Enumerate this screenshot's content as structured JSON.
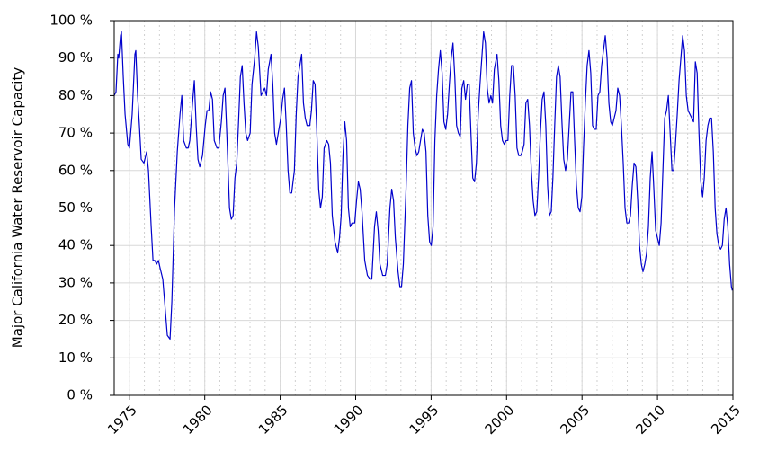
{
  "chart_data": {
    "type": "line",
    "ylabel": "Major California Water Reservoir Capacity",
    "color": "#0000cc",
    "xlim": [
      1974,
      2015
    ],
    "xticks": [
      1975,
      1980,
      1985,
      1990,
      1995,
      2000,
      2005,
      2010,
      2015
    ],
    "ylim": [
      0,
      100
    ],
    "yticks": [
      {
        "value": 0,
        "label": "0 %"
      },
      {
        "value": 10,
        "label": "10 %"
      },
      {
        "value": 20,
        "label": "20 %"
      },
      {
        "value": 30,
        "label": "30 %"
      },
      {
        "value": 40,
        "label": "40 %"
      },
      {
        "value": 50,
        "label": "50 %"
      },
      {
        "value": 60,
        "label": "60 %"
      },
      {
        "value": 70,
        "label": "70 %"
      },
      {
        "value": 80,
        "label": "80 %"
      },
      {
        "value": 90,
        "label": "90 %"
      },
      {
        "value": 100,
        "label": "100 %"
      }
    ],
    "grid": true,
    "x": [
      1974.0,
      1974.12,
      1974.24,
      1974.3,
      1974.42,
      1974.48,
      1974.6,
      1974.72,
      1974.9,
      1975.01,
      1975.19,
      1975.37,
      1975.43,
      1975.55,
      1975.67,
      1975.79,
      1975.97,
      1976.15,
      1976.27,
      1976.45,
      1976.57,
      1976.69,
      1976.81,
      1976.93,
      1977.04,
      1977.22,
      1977.34,
      1977.52,
      1977.7,
      1977.82,
      1978.0,
      1978.18,
      1978.36,
      1978.48,
      1978.6,
      1978.78,
      1978.9,
      1979.01,
      1979.19,
      1979.31,
      1979.43,
      1979.55,
      1979.67,
      1979.85,
      1980.03,
      1980.15,
      1980.27,
      1980.39,
      1980.51,
      1980.63,
      1980.81,
      1980.93,
      1981.1,
      1981.22,
      1981.34,
      1981.46,
      1981.64,
      1981.76,
      1981.88,
      1982.0,
      1982.12,
      1982.24,
      1982.36,
      1982.48,
      1982.6,
      1982.72,
      1982.84,
      1983.01,
      1983.13,
      1983.31,
      1983.43,
      1983.55,
      1983.73,
      1983.85,
      1983.97,
      1984.09,
      1984.21,
      1984.39,
      1984.51,
      1984.63,
      1984.75,
      1984.87,
      1985.04,
      1985.16,
      1985.28,
      1985.4,
      1985.52,
      1985.64,
      1985.76,
      1985.94,
      1986.06,
      1986.18,
      1986.3,
      1986.42,
      1986.54,
      1986.66,
      1986.78,
      1986.96,
      1987.07,
      1987.19,
      1987.31,
      1987.43,
      1987.55,
      1987.67,
      1987.79,
      1987.91,
      1988.09,
      1988.21,
      1988.33,
      1988.45,
      1988.63,
      1988.81,
      1988.93,
      1989.04,
      1989.16,
      1989.28,
      1989.4,
      1989.52,
      1989.64,
      1989.76,
      1989.94,
      1990.06,
      1990.18,
      1990.3,
      1990.42,
      1990.6,
      1990.78,
      1990.96,
      1991.07,
      1991.25,
      1991.37,
      1991.49,
      1991.61,
      1991.79,
      1991.97,
      1992.09,
      1992.27,
      1992.39,
      1992.51,
      1992.63,
      1992.81,
      1992.93,
      1993.04,
      1993.16,
      1993.34,
      1993.46,
      1993.58,
      1993.7,
      1993.82,
      1993.94,
      1994.06,
      1994.18,
      1994.3,
      1994.42,
      1994.54,
      1994.66,
      1994.78,
      1994.9,
      1995.01,
      1995.13,
      1995.25,
      1995.37,
      1995.49,
      1995.61,
      1995.73,
      1995.85,
      1995.97,
      1996.09,
      1996.21,
      1996.33,
      1996.45,
      1996.57,
      1996.69,
      1996.81,
      1996.93,
      1997.04,
      1997.16,
      1997.28,
      1997.4,
      1997.52,
      1997.64,
      1997.76,
      1997.88,
      1998.0,
      1998.12,
      1998.24,
      1998.36,
      1998.48,
      1998.6,
      1998.72,
      1998.84,
      1998.96,
      1999.07,
      1999.19,
      1999.37,
      1999.49,
      1999.61,
      1999.73,
      1999.85,
      1999.97,
      2000.09,
      2000.21,
      2000.33,
      2000.45,
      2000.57,
      2000.69,
      2000.81,
      2000.93,
      2001.04,
      2001.16,
      2001.28,
      2001.4,
      2001.52,
      2001.64,
      2001.76,
      2001.88,
      2002.0,
      2002.12,
      2002.24,
      2002.36,
      2002.48,
      2002.6,
      2002.72,
      2002.84,
      2002.96,
      2003.07,
      2003.19,
      2003.31,
      2003.43,
      2003.55,
      2003.67,
      2003.79,
      2003.91,
      2004.03,
      2004.15,
      2004.27,
      2004.39,
      2004.51,
      2004.63,
      2004.75,
      2004.87,
      2004.99,
      2005.1,
      2005.22,
      2005.34,
      2005.46,
      2005.58,
      2005.7,
      2005.82,
      2005.94,
      2006.06,
      2006.18,
      2006.3,
      2006.42,
      2006.54,
      2006.66,
      2006.78,
      2006.9,
      2007.01,
      2007.13,
      2007.25,
      2007.37,
      2007.49,
      2007.61,
      2007.73,
      2007.85,
      2007.97,
      2008.09,
      2008.21,
      2008.33,
      2008.45,
      2008.57,
      2008.69,
      2008.81,
      2008.93,
      2009.04,
      2009.16,
      2009.28,
      2009.4,
      2009.52,
      2009.64,
      2009.76,
      2009.88,
      2010.0,
      2010.12,
      2010.24,
      2010.36,
      2010.48,
      2010.6,
      2010.72,
      2010.84,
      2010.96,
      2011.07,
      2011.19,
      2011.31,
      2011.43,
      2011.55,
      2011.67,
      2011.79,
      2011.91,
      2012.03,
      2012.15,
      2012.27,
      2012.39,
      2012.51,
      2012.63,
      2012.75,
      2012.87,
      2012.99,
      2013.1,
      2013.22,
      2013.34,
      2013.46,
      2013.58,
      2013.7,
      2013.82,
      2013.94,
      2014.06,
      2014.18,
      2014.3,
      2014.42,
      2014.54,
      2014.66,
      2014.78,
      2014.9,
      2014.96
    ],
    "values": [
      80,
      81,
      91,
      90,
      96,
      97,
      85,
      75,
      67,
      66,
      75,
      91,
      92,
      80,
      72,
      63,
      62,
      65,
      60,
      45,
      36,
      36,
      35,
      36,
      34,
      31,
      25,
      16,
      15,
      25,
      50,
      65,
      75,
      80,
      68,
      66,
      66,
      68,
      78,
      84,
      72,
      63,
      61,
      64,
      72,
      76,
      76,
      81,
      79,
      68,
      66,
      66,
      73,
      80,
      82,
      70,
      50,
      47,
      48,
      58,
      62,
      73,
      85,
      88,
      78,
      70,
      68,
      70,
      83,
      90,
      97,
      93,
      80,
      81,
      82,
      80,
      87,
      91,
      83,
      70,
      67,
      70,
      74,
      79,
      82,
      72,
      60,
      54,
      54,
      60,
      75,
      85,
      88,
      91,
      78,
      74,
      72,
      72,
      76,
      84,
      83,
      70,
      55,
      50,
      53,
      66,
      68,
      67,
      62,
      48,
      41,
      38,
      42,
      48,
      64,
      73,
      68,
      50,
      45,
      46,
      46,
      52,
      57,
      55,
      49,
      36,
      32,
      31,
      31,
      45,
      49,
      44,
      35,
      32,
      32,
      35,
      50,
      55,
      52,
      42,
      33,
      29,
      29,
      35,
      55,
      72,
      82,
      84,
      70,
      66,
      64,
      65,
      68,
      71,
      70,
      65,
      48,
      41,
      40,
      45,
      68,
      80,
      87,
      92,
      86,
      73,
      71,
      75,
      83,
      90,
      94,
      85,
      72,
      70,
      69,
      82,
      84,
      79,
      83,
      83,
      70,
      58,
      57,
      62,
      75,
      83,
      90,
      97,
      94,
      82,
      78,
      80,
      78,
      87,
      91,
      84,
      72,
      68,
      67,
      68,
      68,
      80,
      88,
      88,
      80,
      66,
      64,
      64,
      65,
      67,
      78,
      79,
      72,
      60,
      52,
      48,
      49,
      58,
      70,
      79,
      81,
      72,
      56,
      48,
      49,
      58,
      72,
      85,
      88,
      85,
      73,
      63,
      60,
      63,
      72,
      81,
      81,
      68,
      56,
      50,
      49,
      53,
      66,
      78,
      88,
      92,
      86,
      72,
      71,
      71,
      80,
      81,
      88,
      92,
      96,
      90,
      78,
      73,
      72,
      74,
      76,
      82,
      80,
      72,
      62,
      50,
      46,
      46,
      48,
      56,
      62,
      61,
      52,
      40,
      35,
      33,
      35,
      38,
      45,
      58,
      65,
      55,
      44,
      42,
      40,
      46,
      60,
      74,
      76,
      80,
      70,
      60,
      60,
      67,
      75,
      84,
      90,
      96,
      92,
      80,
      76,
      75,
      74,
      73,
      89,
      86,
      70,
      57,
      53,
      58,
      68,
      72,
      74,
      74,
      65,
      50,
      43,
      40,
      39,
      40,
      47,
      50,
      45,
      35,
      29,
      28
    ]
  }
}
